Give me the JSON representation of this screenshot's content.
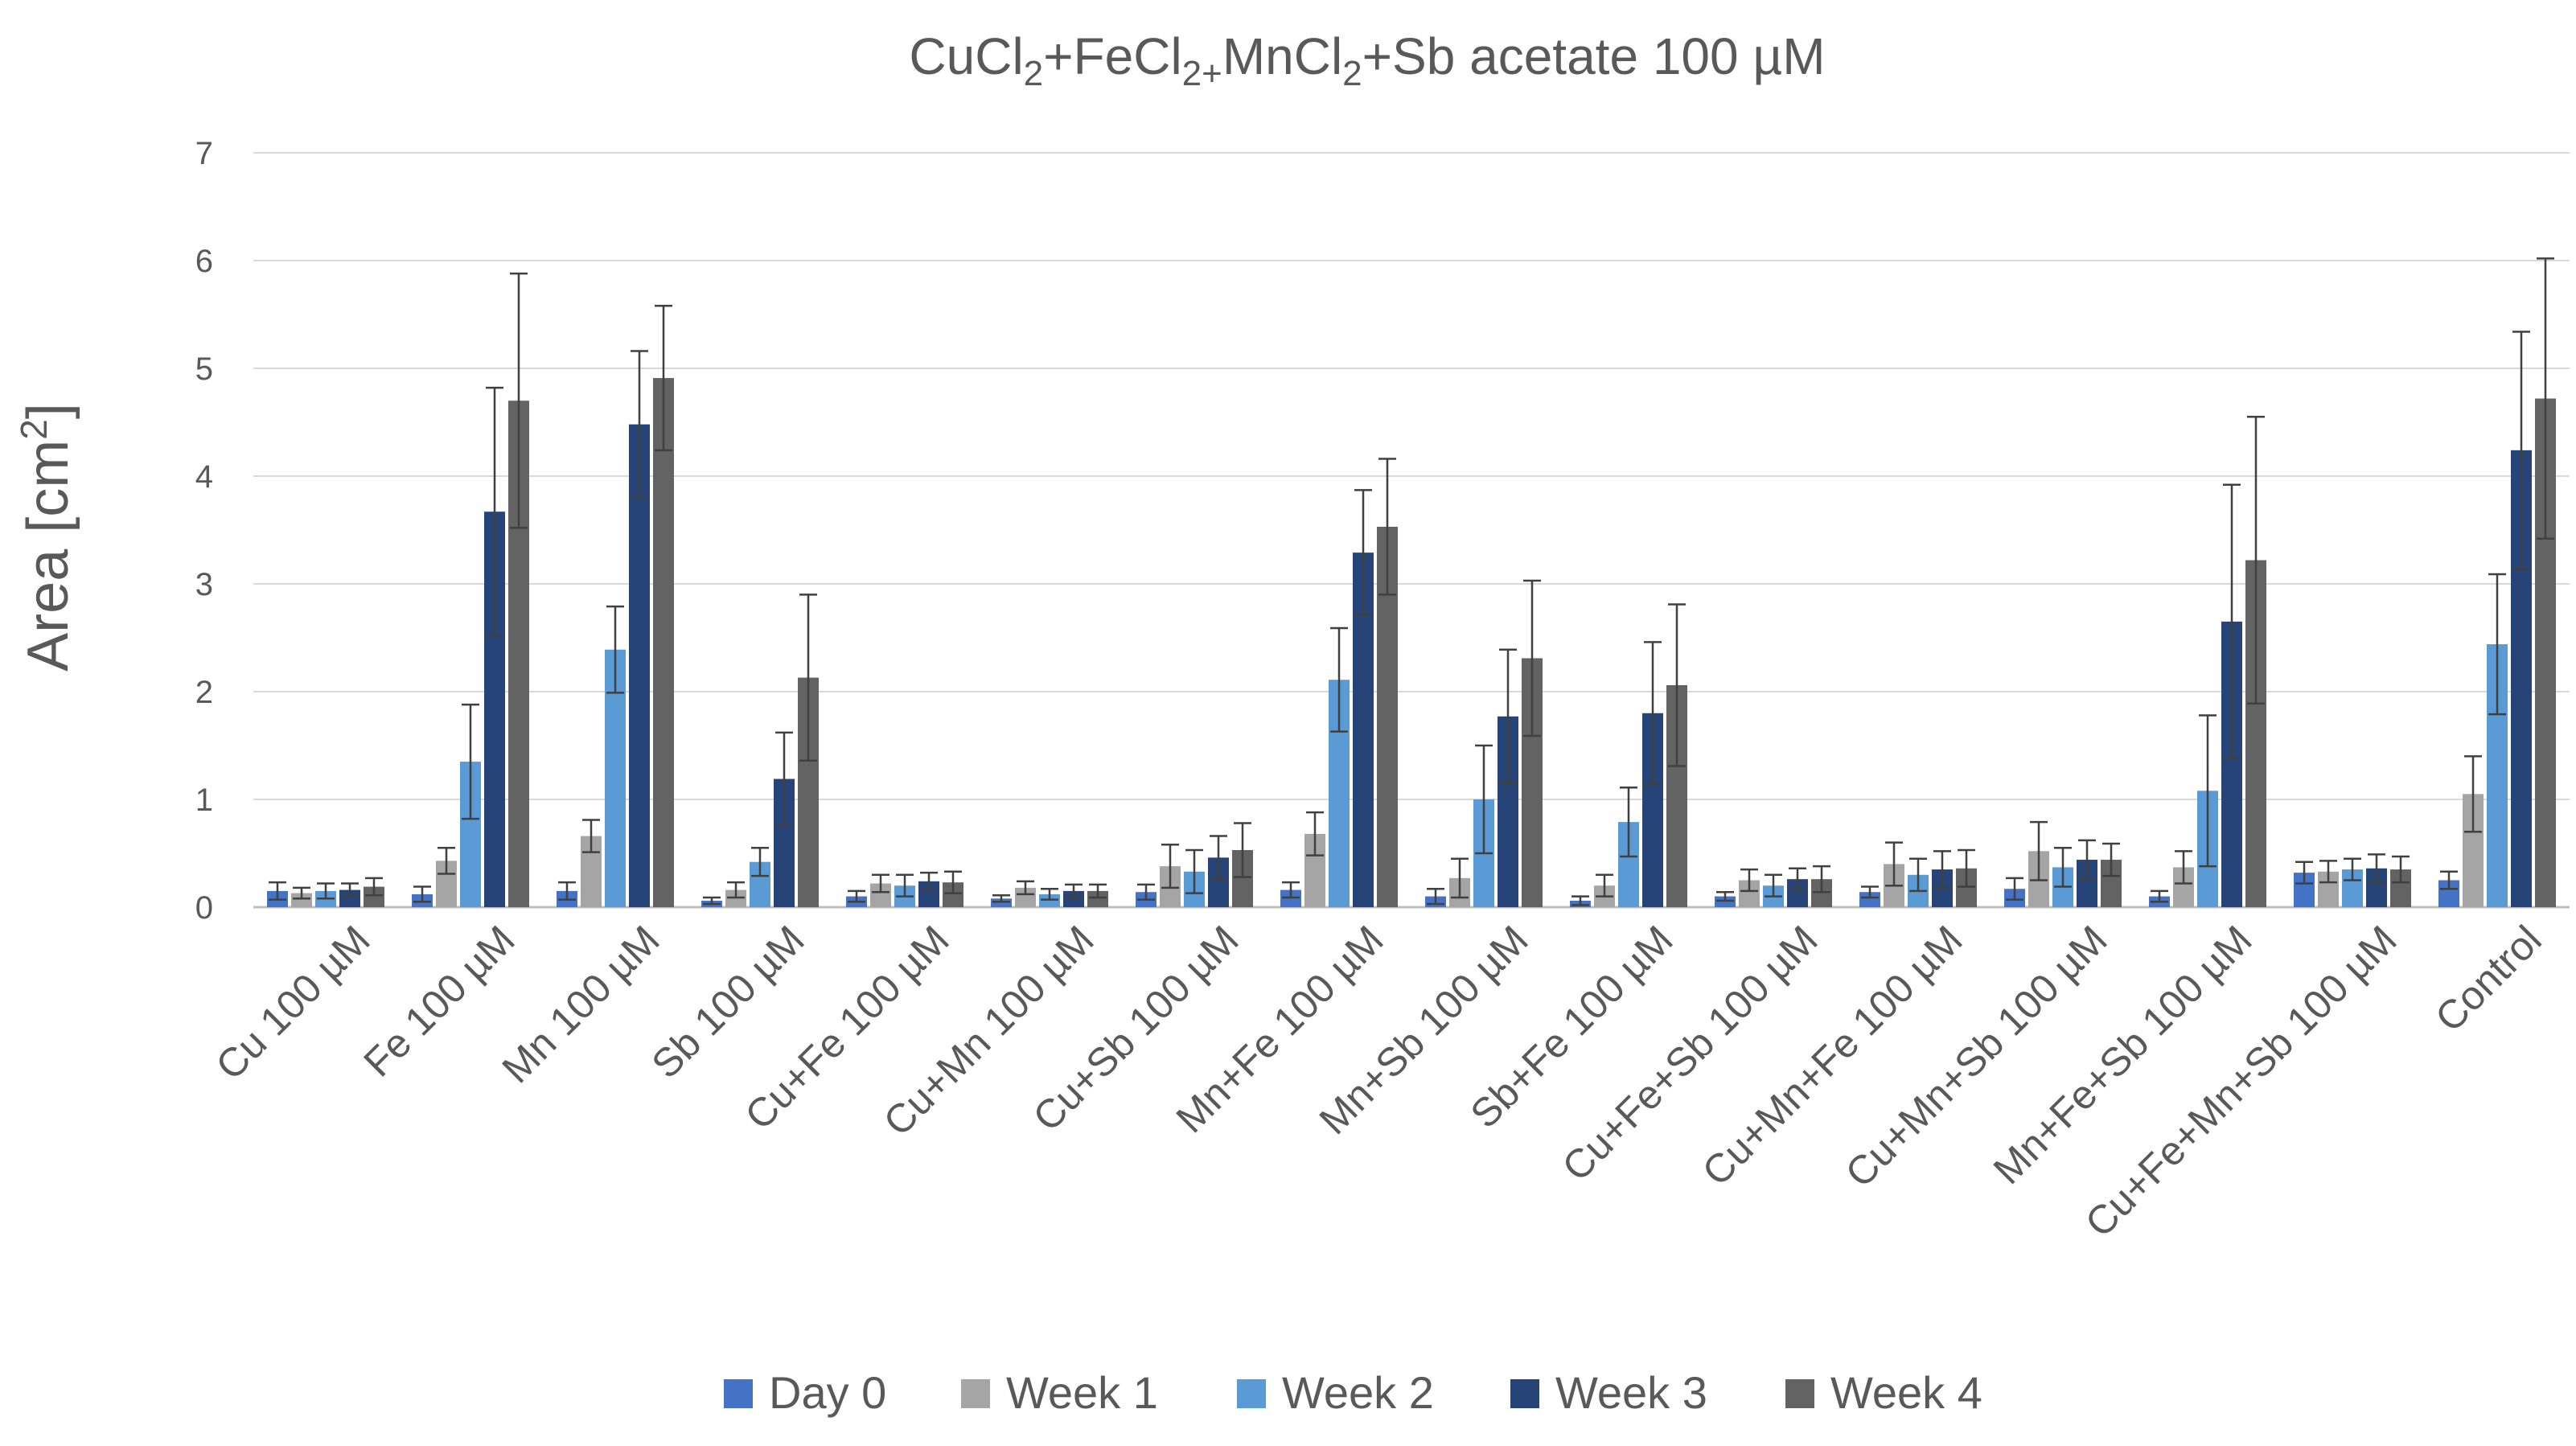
{
  "chart_data": {
    "type": "bar",
    "title": {
      "part1": "CuCl",
      "sub1": "2",
      "part2": "+FeCl",
      "sub2": "2+",
      "part3": "MnCl",
      "sub3": "2",
      "part4": "+Sb acetate 100 µM"
    },
    "ylabel": {
      "text": "Area [cm",
      "sup": "2",
      "end": "]"
    },
    "xlabel": "",
    "ylim": [
      0,
      7
    ],
    "yticks": [
      "0",
      "1",
      "2",
      "3",
      "4",
      "5",
      "6",
      "7"
    ],
    "grid": true,
    "legend_position": "bottom",
    "categories": [
      "Cu 100 µM",
      "Fe 100 µM",
      "Mn 100 µM",
      "Sb 100 µM",
      "Cu+Fe 100 µM",
      "Cu+Mn 100 µM",
      "Cu+Sb 100 µM",
      "Mn+Fe 100 µM",
      "Mn+Sb 100 µM",
      "Sb+Fe 100 µM",
      "Cu+Fe+Sb 100 µM",
      "Cu+Mn+Fe 100 µM",
      "Cu+Mn+Sb 100 µM",
      "Mn+Fe+Sb 100 µM",
      "Cu+Fe+Mn+Sb 100 µM",
      "Control"
    ],
    "series": [
      {
        "name": "Day 0",
        "color": "#4472C4",
        "values": [
          0.15,
          0.12,
          0.15,
          0.06,
          0.1,
          0.08,
          0.14,
          0.16,
          0.1,
          0.06,
          0.1,
          0.14,
          0.17,
          0.1,
          0.32,
          0.25
        ],
        "errors": [
          0.08,
          0.07,
          0.08,
          0.03,
          0.05,
          0.03,
          0.07,
          0.07,
          0.07,
          0.04,
          0.04,
          0.05,
          0.1,
          0.05,
          0.1,
          0.08
        ]
      },
      {
        "name": "Week 1",
        "color": "#A5A5A5",
        "values": [
          0.13,
          0.43,
          0.66,
          0.16,
          0.22,
          0.18,
          0.38,
          0.68,
          0.27,
          0.2,
          0.25,
          0.4,
          0.52,
          0.37,
          0.33,
          1.05
        ],
        "errors": [
          0.05,
          0.12,
          0.15,
          0.07,
          0.08,
          0.06,
          0.2,
          0.2,
          0.18,
          0.1,
          0.1,
          0.2,
          0.27,
          0.15,
          0.1,
          0.35
        ]
      },
      {
        "name": "Week 2",
        "color": "#5B9BD5",
        "values": [
          0.15,
          1.35,
          2.39,
          0.42,
          0.2,
          0.12,
          0.33,
          2.11,
          1.0,
          0.79,
          0.2,
          0.3,
          0.37,
          1.08,
          0.35,
          2.44
        ],
        "errors": [
          0.07,
          0.53,
          0.4,
          0.13,
          0.1,
          0.05,
          0.2,
          0.48,
          0.5,
          0.32,
          0.1,
          0.15,
          0.18,
          0.7,
          0.1,
          0.65
        ]
      },
      {
        "name": "Week 3",
        "color": "#264478",
        "values": [
          0.16,
          3.67,
          4.48,
          1.19,
          0.24,
          0.15,
          0.46,
          3.29,
          1.77,
          1.8,
          0.26,
          0.35,
          0.44,
          2.65,
          0.36,
          4.24
        ]
      },
      {
        "name": "Week 4",
        "color": "#636363",
        "values": [
          0.19,
          4.7,
          4.91,
          2.13,
          0.23,
          0.15,
          0.53,
          3.53,
          2.31,
          2.06,
          0.26,
          0.36,
          0.44,
          3.22,
          0.35,
          4.72
        ]
      }
    ],
    "errors_w3": [
      0.06,
      1.15,
      0.68,
      0.43,
      0.08,
      0.06,
      0.2,
      0.58,
      0.62,
      0.66,
      0.1,
      0.17,
      0.18,
      1.27,
      0.13,
      1.1
    ],
    "errors_w4": [
      0.08,
      1.18,
      0.67,
      0.77,
      0.1,
      0.06,
      0.25,
      0.63,
      0.72,
      0.75,
      0.12,
      0.17,
      0.15,
      1.33,
      0.12,
      1.3
    ]
  }
}
